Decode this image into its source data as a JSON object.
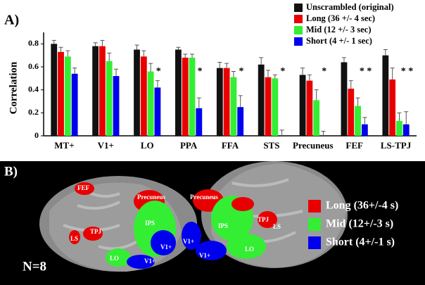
{
  "chart_data": {
    "type": "bar",
    "panel_label": "A)",
    "ylabel": "Correlation",
    "categories": [
      "MT+",
      "V1+",
      "LO",
      "PPA",
      "FFA",
      "STS",
      "Precuneus",
      "FEF",
      "LS-TPJ"
    ],
    "series": [
      {
        "name": "Unscrambled (original)",
        "color": "#111111",
        "values": [
          0.8,
          0.78,
          0.75,
          0.75,
          0.59,
          0.62,
          0.53,
          0.64,
          0.7
        ],
        "errors": [
          0.03,
          0.03,
          0.04,
          0.02,
          0.05,
          0.06,
          0.06,
          0.04,
          0.05
        ]
      },
      {
        "name": "Long  (36 +/- 4 sec)",
        "color": "#e80000",
        "values": [
          0.73,
          0.78,
          0.69,
          0.68,
          0.59,
          0.51,
          0.48,
          0.41,
          0.49
        ],
        "errors": [
          0.04,
          0.05,
          0.05,
          0.03,
          0.04,
          0.06,
          0.05,
          0.07,
          0.1
        ]
      },
      {
        "name": "Mid   (12 +/- 3 sec)",
        "color": "#33ee33",
        "values": [
          0.69,
          0.65,
          0.56,
          0.68,
          0.51,
          0.5,
          0.31,
          0.26,
          0.13
        ],
        "errors": [
          0.05,
          0.07,
          0.07,
          0.03,
          0.05,
          0.03,
          0.09,
          0.07,
          0.07
        ]
      },
      {
        "name": "Short  (4 +/- 1 sec)",
        "color": "#0000ee",
        "values": [
          0.54,
          0.52,
          0.42,
          0.24,
          0.25,
          0,
          0,
          0.1,
          0.1
        ],
        "errors": [
          0.05,
          0.06,
          0.06,
          0.09,
          0.1,
          0.05,
          0.04,
          0.06,
          0.11
        ]
      }
    ],
    "significance": [
      null,
      null,
      "*",
      "*",
      "*",
      "*",
      "*",
      "* *",
      "* *"
    ],
    "ylim": [
      0,
      0.9
    ],
    "yticks": [
      0,
      0.2,
      0.4,
      0.6,
      0.8
    ],
    "legend": "upper right"
  },
  "brain_panel": {
    "panel_label": "B)",
    "sample": "N=8",
    "legend": [
      {
        "name": "Long (36+/-4 s)",
        "color": "#e80000"
      },
      {
        "name": "Mid (12+/-3 s)",
        "color": "#33ee33"
      },
      {
        "name": "Short (4+/-1 s)",
        "color": "#0000ee"
      }
    ],
    "region_labels": [
      "FEF",
      "Precuneus",
      "TPJ",
      "LS",
      "IPS",
      "LO",
      "V1+",
      "V1+",
      "Precuneus",
      "IPS",
      "TPJ",
      "LS",
      "V1+",
      "V1+",
      "LO"
    ]
  }
}
